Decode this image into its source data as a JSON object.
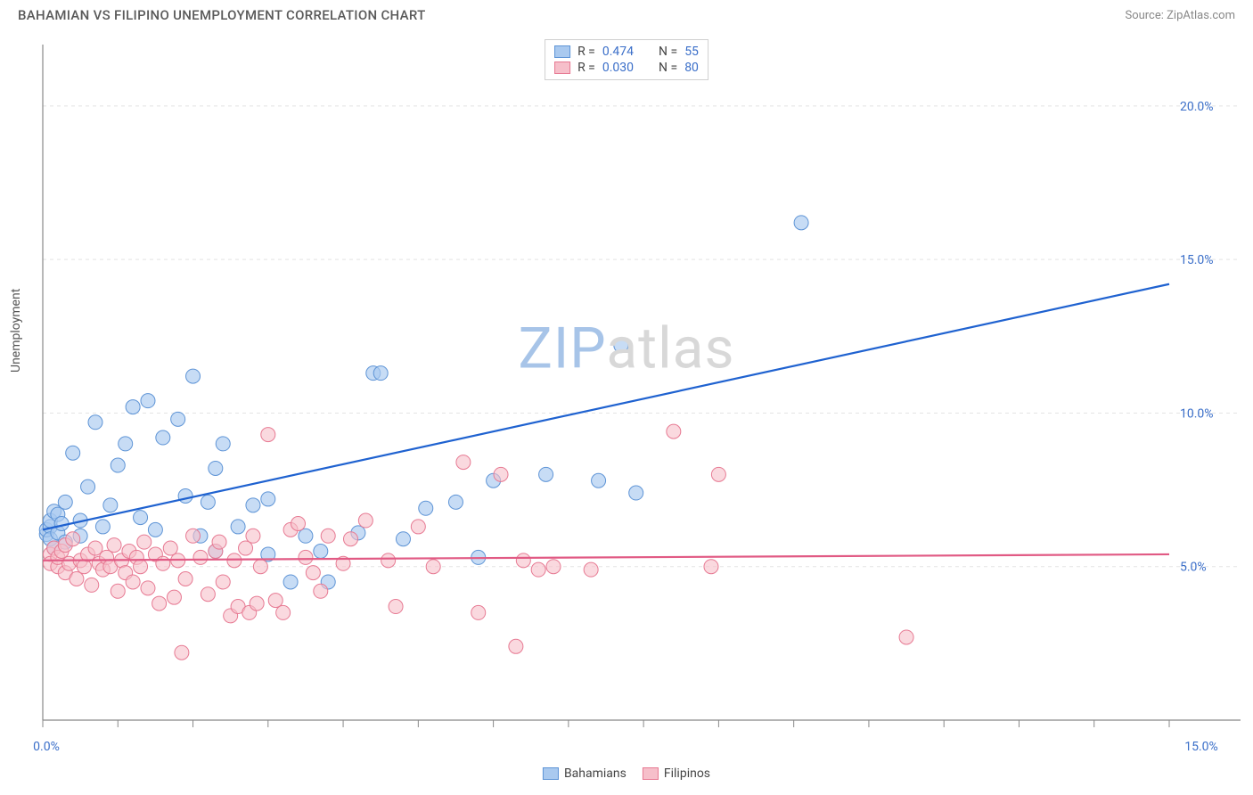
{
  "title": "BAHAMIAN VS FILIPINO UNEMPLOYMENT CORRELATION CHART",
  "source": "Source: ZipAtlas.com",
  "ylabel": "Unemployment",
  "watermark": {
    "zip": "ZIP",
    "atlas": "atlas"
  },
  "chart": {
    "type": "scatter",
    "xlim": [
      0,
      15
    ],
    "ylim": [
      0,
      22
    ],
    "xtick_labels": [
      "0.0%",
      "15.0%"
    ],
    "xtick_positions": [
      0,
      15
    ],
    "xtick_marks": [
      0,
      1,
      2,
      3,
      4,
      5,
      6,
      7,
      8,
      9,
      10,
      11,
      12,
      13,
      14,
      15
    ],
    "ytick_labels": [
      "5.0%",
      "10.0%",
      "15.0%",
      "20.0%"
    ],
    "ytick_positions": [
      5,
      10,
      15,
      20
    ],
    "grid_color": "#e4e4e4",
    "axis_color": "#888888",
    "background": "#ffffff",
    "series": [
      {
        "name": "Bahamians",
        "marker_fill": "#a9c9ef",
        "marker_stroke": "#5e94d6",
        "marker_radius": 8,
        "marker_opacity": 0.65,
        "line_color": "#1f62d0",
        "line_width": 2.2,
        "regression": {
          "x1": 0,
          "y1": 6.2,
          "x2": 15,
          "y2": 14.2
        },
        "R": "0.474",
        "N": "55",
        "points": [
          [
            0.05,
            6.05
          ],
          [
            0.05,
            6.2
          ],
          [
            0.1,
            6.3
          ],
          [
            0.1,
            6.5
          ],
          [
            0.1,
            5.9
          ],
          [
            0.15,
            6.8
          ],
          [
            0.15,
            5.6
          ],
          [
            0.2,
            6.1
          ],
          [
            0.2,
            6.7
          ],
          [
            0.25,
            6.4
          ],
          [
            0.3,
            7.1
          ],
          [
            0.3,
            5.8
          ],
          [
            0.4,
            8.7
          ],
          [
            0.5,
            6.0
          ],
          [
            0.5,
            6.5
          ],
          [
            0.6,
            7.6
          ],
          [
            0.7,
            9.7
          ],
          [
            0.8,
            6.3
          ],
          [
            0.9,
            7.0
          ],
          [
            1.0,
            8.3
          ],
          [
            1.1,
            9.0
          ],
          [
            1.2,
            10.2
          ],
          [
            1.3,
            6.6
          ],
          [
            1.4,
            10.4
          ],
          [
            1.5,
            6.2
          ],
          [
            1.6,
            9.2
          ],
          [
            1.8,
            9.8
          ],
          [
            1.9,
            7.3
          ],
          [
            2.0,
            11.2
          ],
          [
            2.1,
            6.0
          ],
          [
            2.2,
            7.1
          ],
          [
            2.3,
            8.2
          ],
          [
            2.3,
            5.5
          ],
          [
            2.4,
            9.0
          ],
          [
            2.6,
            6.3
          ],
          [
            2.8,
            7.0
          ],
          [
            3.0,
            7.2
          ],
          [
            3.0,
            5.4
          ],
          [
            3.3,
            4.5
          ],
          [
            3.5,
            6.0
          ],
          [
            3.7,
            5.5
          ],
          [
            3.8,
            4.5
          ],
          [
            4.2,
            6.1
          ],
          [
            4.4,
            11.3
          ],
          [
            4.5,
            11.3
          ],
          [
            4.8,
            5.9
          ],
          [
            5.1,
            6.9
          ],
          [
            5.5,
            7.1
          ],
          [
            6.0,
            7.8
          ],
          [
            6.7,
            8.0
          ],
          [
            7.4,
            7.8
          ],
          [
            7.7,
            12.2
          ],
          [
            7.9,
            7.4
          ],
          [
            10.1,
            16.2
          ],
          [
            5.8,
            5.3
          ]
        ]
      },
      {
        "name": "Filipinos",
        "marker_fill": "#f6bfca",
        "marker_stroke": "#e77a93",
        "marker_radius": 8,
        "marker_opacity": 0.6,
        "line_color": "#e15a84",
        "line_width": 2.2,
        "regression": {
          "x1": 0,
          "y1": 5.2,
          "x2": 15,
          "y2": 5.4
        },
        "R": "0.030",
        "N": "80",
        "points": [
          [
            0.1,
            5.4
          ],
          [
            0.1,
            5.1
          ],
          [
            0.15,
            5.6
          ],
          [
            0.2,
            5.0
          ],
          [
            0.2,
            5.3
          ],
          [
            0.25,
            5.5
          ],
          [
            0.3,
            4.8
          ],
          [
            0.3,
            5.7
          ],
          [
            0.35,
            5.1
          ],
          [
            0.4,
            5.9
          ],
          [
            0.45,
            4.6
          ],
          [
            0.5,
            5.2
          ],
          [
            0.55,
            5.0
          ],
          [
            0.6,
            5.4
          ],
          [
            0.65,
            4.4
          ],
          [
            0.7,
            5.6
          ],
          [
            0.75,
            5.1
          ],
          [
            0.8,
            4.9
          ],
          [
            0.85,
            5.3
          ],
          [
            0.9,
            5.0
          ],
          [
            0.95,
            5.7
          ],
          [
            1.0,
            4.2
          ],
          [
            1.05,
            5.2
          ],
          [
            1.1,
            4.8
          ],
          [
            1.15,
            5.5
          ],
          [
            1.2,
            4.5
          ],
          [
            1.25,
            5.3
          ],
          [
            1.3,
            5.0
          ],
          [
            1.35,
            5.8
          ],
          [
            1.4,
            4.3
          ],
          [
            1.5,
            5.4
          ],
          [
            1.55,
            3.8
          ],
          [
            1.6,
            5.1
          ],
          [
            1.7,
            5.6
          ],
          [
            1.75,
            4.0
          ],
          [
            1.8,
            5.2
          ],
          [
            1.85,
            2.2
          ],
          [
            1.9,
            4.6
          ],
          [
            2.0,
            6.0
          ],
          [
            2.1,
            5.3
          ],
          [
            2.2,
            4.1
          ],
          [
            2.3,
            5.5
          ],
          [
            2.35,
            5.8
          ],
          [
            2.4,
            4.5
          ],
          [
            2.5,
            3.4
          ],
          [
            2.55,
            5.2
          ],
          [
            2.6,
            3.7
          ],
          [
            2.7,
            5.6
          ],
          [
            2.75,
            3.5
          ],
          [
            2.8,
            6.0
          ],
          [
            2.85,
            3.8
          ],
          [
            2.9,
            5.0
          ],
          [
            3.1,
            3.9
          ],
          [
            3.2,
            3.5
          ],
          [
            3.3,
            6.2
          ],
          [
            3.4,
            6.4
          ],
          [
            3.5,
            5.3
          ],
          [
            3.6,
            4.8
          ],
          [
            3.7,
            4.2
          ],
          [
            3.8,
            6.0
          ],
          [
            4.0,
            5.1
          ],
          [
            4.1,
            5.9
          ],
          [
            4.3,
            6.5
          ],
          [
            4.6,
            5.2
          ],
          [
            4.7,
            3.7
          ],
          [
            5.0,
            6.3
          ],
          [
            5.2,
            5.0
          ],
          [
            5.6,
            8.4
          ],
          [
            5.8,
            3.5
          ],
          [
            6.1,
            8.0
          ],
          [
            6.3,
            2.4
          ],
          [
            6.4,
            5.2
          ],
          [
            6.6,
            4.9
          ],
          [
            6.8,
            5.0
          ],
          [
            7.3,
            4.9
          ],
          [
            8.4,
            9.4
          ],
          [
            8.9,
            5.0
          ],
          [
            9.0,
            8.0
          ],
          [
            11.5,
            2.7
          ],
          [
            3.0,
            9.3
          ]
        ]
      }
    ]
  },
  "legend_top_rows": [
    {
      "swatch_fill": "#a9c9ef",
      "swatch_stroke": "#5e94d6",
      "R_label": "R =",
      "R": "0.474",
      "N_label": "N =",
      "N": "55"
    },
    {
      "swatch_fill": "#f6bfca",
      "swatch_stroke": "#e77a93",
      "R_label": "R =",
      "R": "0.030",
      "N_label": "N =",
      "N": "80"
    }
  ],
  "legend_bottom": [
    {
      "swatch_fill": "#a9c9ef",
      "swatch_stroke": "#5e94d6",
      "label": "Bahamians"
    },
    {
      "swatch_fill": "#f6bfca",
      "swatch_stroke": "#e77a93",
      "label": "Filipinos"
    }
  ]
}
